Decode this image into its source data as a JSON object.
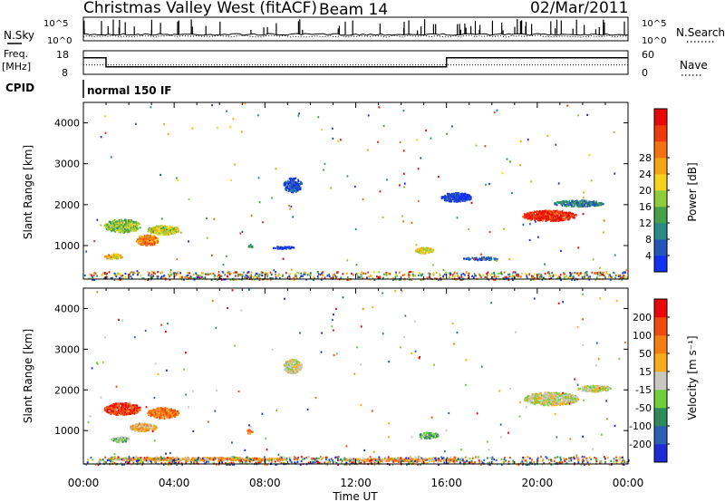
{
  "header": {
    "title": "Christmas Valley West (fitACF)",
    "beam": "Beam 14",
    "date": "02/Mar/2011"
  },
  "left_labels": {
    "nsky": "N.Sky",
    "freq": "Freq.",
    "freq_unit": "[MHz]",
    "cpid": "CPID"
  },
  "right_labels": {
    "nsearch": "N.Search",
    "nave": "Nave"
  },
  "cpid_text": "normal 150 IF",
  "chart_data": [
    {
      "type": "line",
      "id": "noise",
      "ylabel": "N.Sky",
      "left_ticks": [
        "10^5",
        "10^0"
      ],
      "right_ticks": [
        "10^5",
        "10^0"
      ],
      "right_label": "N.Search",
      "series": [
        {
          "name": "N.Sky",
          "style": "solid"
        },
        {
          "name": "N.Search",
          "style": "dotted"
        }
      ]
    },
    {
      "type": "line",
      "id": "freq-nave",
      "left_ticks": [
        "18",
        "8"
      ],
      "right_ticks": [
        "60",
        "0"
      ],
      "x_hours": [
        0,
        1,
        1,
        16,
        16,
        24
      ],
      "freq_mhz": [
        15,
        15,
        11.2,
        11.2,
        15,
        15
      ],
      "nave": [
        24,
        24,
        24,
        24,
        24,
        24
      ]
    },
    {
      "type": "heatmap",
      "id": "power",
      "xlabel": "",
      "ylabel": "Slant Range [km]",
      "yticks": [
        1000,
        2000,
        3000,
        4000
      ],
      "ylim": [
        180,
        4500
      ],
      "xlim": [
        0,
        24
      ],
      "colorbar_label": "Power [dB]",
      "colorbar_ticks": [
        "4",
        "8",
        "12",
        "16",
        "20",
        "24",
        "28"
      ],
      "colorbar_colors": [
        "#1230f0",
        "#2455b8",
        "#2a8a86",
        "#46a248",
        "#8fcc3c",
        "#f6d21c",
        "#f6a412",
        "#f27210",
        "#ee3b0c",
        "#e80808"
      ],
      "blobs": [
        {
          "t": 1.7,
          "r": 1500,
          "dt": 1.6,
          "dr": 320,
          "level": 0.42
        },
        {
          "t": 2.8,
          "r": 1150,
          "dt": 1.0,
          "dr": 260,
          "level": 0.72
        },
        {
          "t": 3.5,
          "r": 1400,
          "dt": 1.4,
          "dr": 220,
          "level": 0.5
        },
        {
          "t": 1.3,
          "r": 750,
          "dt": 0.8,
          "dr": 130,
          "level": 0.6
        },
        {
          "t": 7.3,
          "r": 1000,
          "dt": 0.25,
          "dr": 110,
          "level": 0.3
        },
        {
          "t": 8.8,
          "r": 970,
          "dt": 1.0,
          "dr": 60,
          "level": 0.05
        },
        {
          "t": 9.2,
          "r": 2500,
          "dt": 0.8,
          "dr": 350,
          "level": 0.1
        },
        {
          "t": 15.0,
          "r": 900,
          "dt": 0.8,
          "dr": 140,
          "level": 0.55
        },
        {
          "t": 16.4,
          "r": 2200,
          "dt": 1.4,
          "dr": 220,
          "level": 0.05
        },
        {
          "t": 17.5,
          "r": 700,
          "dt": 1.6,
          "dr": 70,
          "level": 0.15
        },
        {
          "t": 20.5,
          "r": 1750,
          "dt": 2.4,
          "dr": 260,
          "level": 0.9
        },
        {
          "t": 21.8,
          "r": 2050,
          "dt": 2.2,
          "dr": 150,
          "level": 0.25
        }
      ]
    },
    {
      "type": "heatmap",
      "id": "velocity",
      "xlabel": "Time UT",
      "ylabel": "Slant Range [km]",
      "yticks": [
        1000,
        2000,
        3000,
        4000
      ],
      "ylim": [
        180,
        4500
      ],
      "xlim": [
        0,
        24
      ],
      "xticks": [
        "00:00",
        "04:00",
        "08:00",
        "12:00",
        "16:00",
        "20:00",
        "00:00"
      ],
      "colorbar_label": "Velocity [m s⁻¹]",
      "colorbar_ticks": [
        "200",
        "100",
        "50",
        "15",
        "-15",
        "-50",
        "-100",
        "-200"
      ],
      "colorbar_colors": [
        "#1d2ad6",
        "#2b5fb4",
        "#2f8a5a",
        "#6ecf3a",
        "#c8c8c0",
        "#f7ac1c",
        "#f57e10",
        "#f14a0d",
        "#e80808"
      ],
      "blobs": [
        {
          "t": 1.7,
          "r": 1550,
          "dt": 1.6,
          "dr": 300,
          "level": 0.88
        },
        {
          "t": 3.5,
          "r": 1450,
          "dt": 1.4,
          "dr": 260,
          "level": 0.75
        },
        {
          "t": 2.6,
          "r": 1100,
          "dt": 1.2,
          "dr": 200,
          "level": 0.6
        },
        {
          "t": 1.6,
          "r": 800,
          "dt": 0.8,
          "dr": 120,
          "level": 0.42
        },
        {
          "t": 7.3,
          "r": 1000,
          "dt": 0.25,
          "dr": 110,
          "level": 0.72
        },
        {
          "t": 9.2,
          "r": 2600,
          "dt": 0.8,
          "dr": 350,
          "level": 0.48
        },
        {
          "t": 15.2,
          "r": 900,
          "dt": 0.9,
          "dr": 150,
          "level": 0.35
        },
        {
          "t": 20.6,
          "r": 1800,
          "dt": 2.4,
          "dr": 320,
          "level": 0.5
        },
        {
          "t": 22.5,
          "r": 2050,
          "dt": 1.5,
          "dr": 150,
          "level": 0.5
        },
        {
          "t": 5.0,
          "r": 320,
          "dt": 8.0,
          "dr": 80,
          "level": 0.62
        },
        {
          "t": 14.0,
          "r": 300,
          "dt": 6.0,
          "dr": 70,
          "level": 0.62
        }
      ]
    }
  ]
}
